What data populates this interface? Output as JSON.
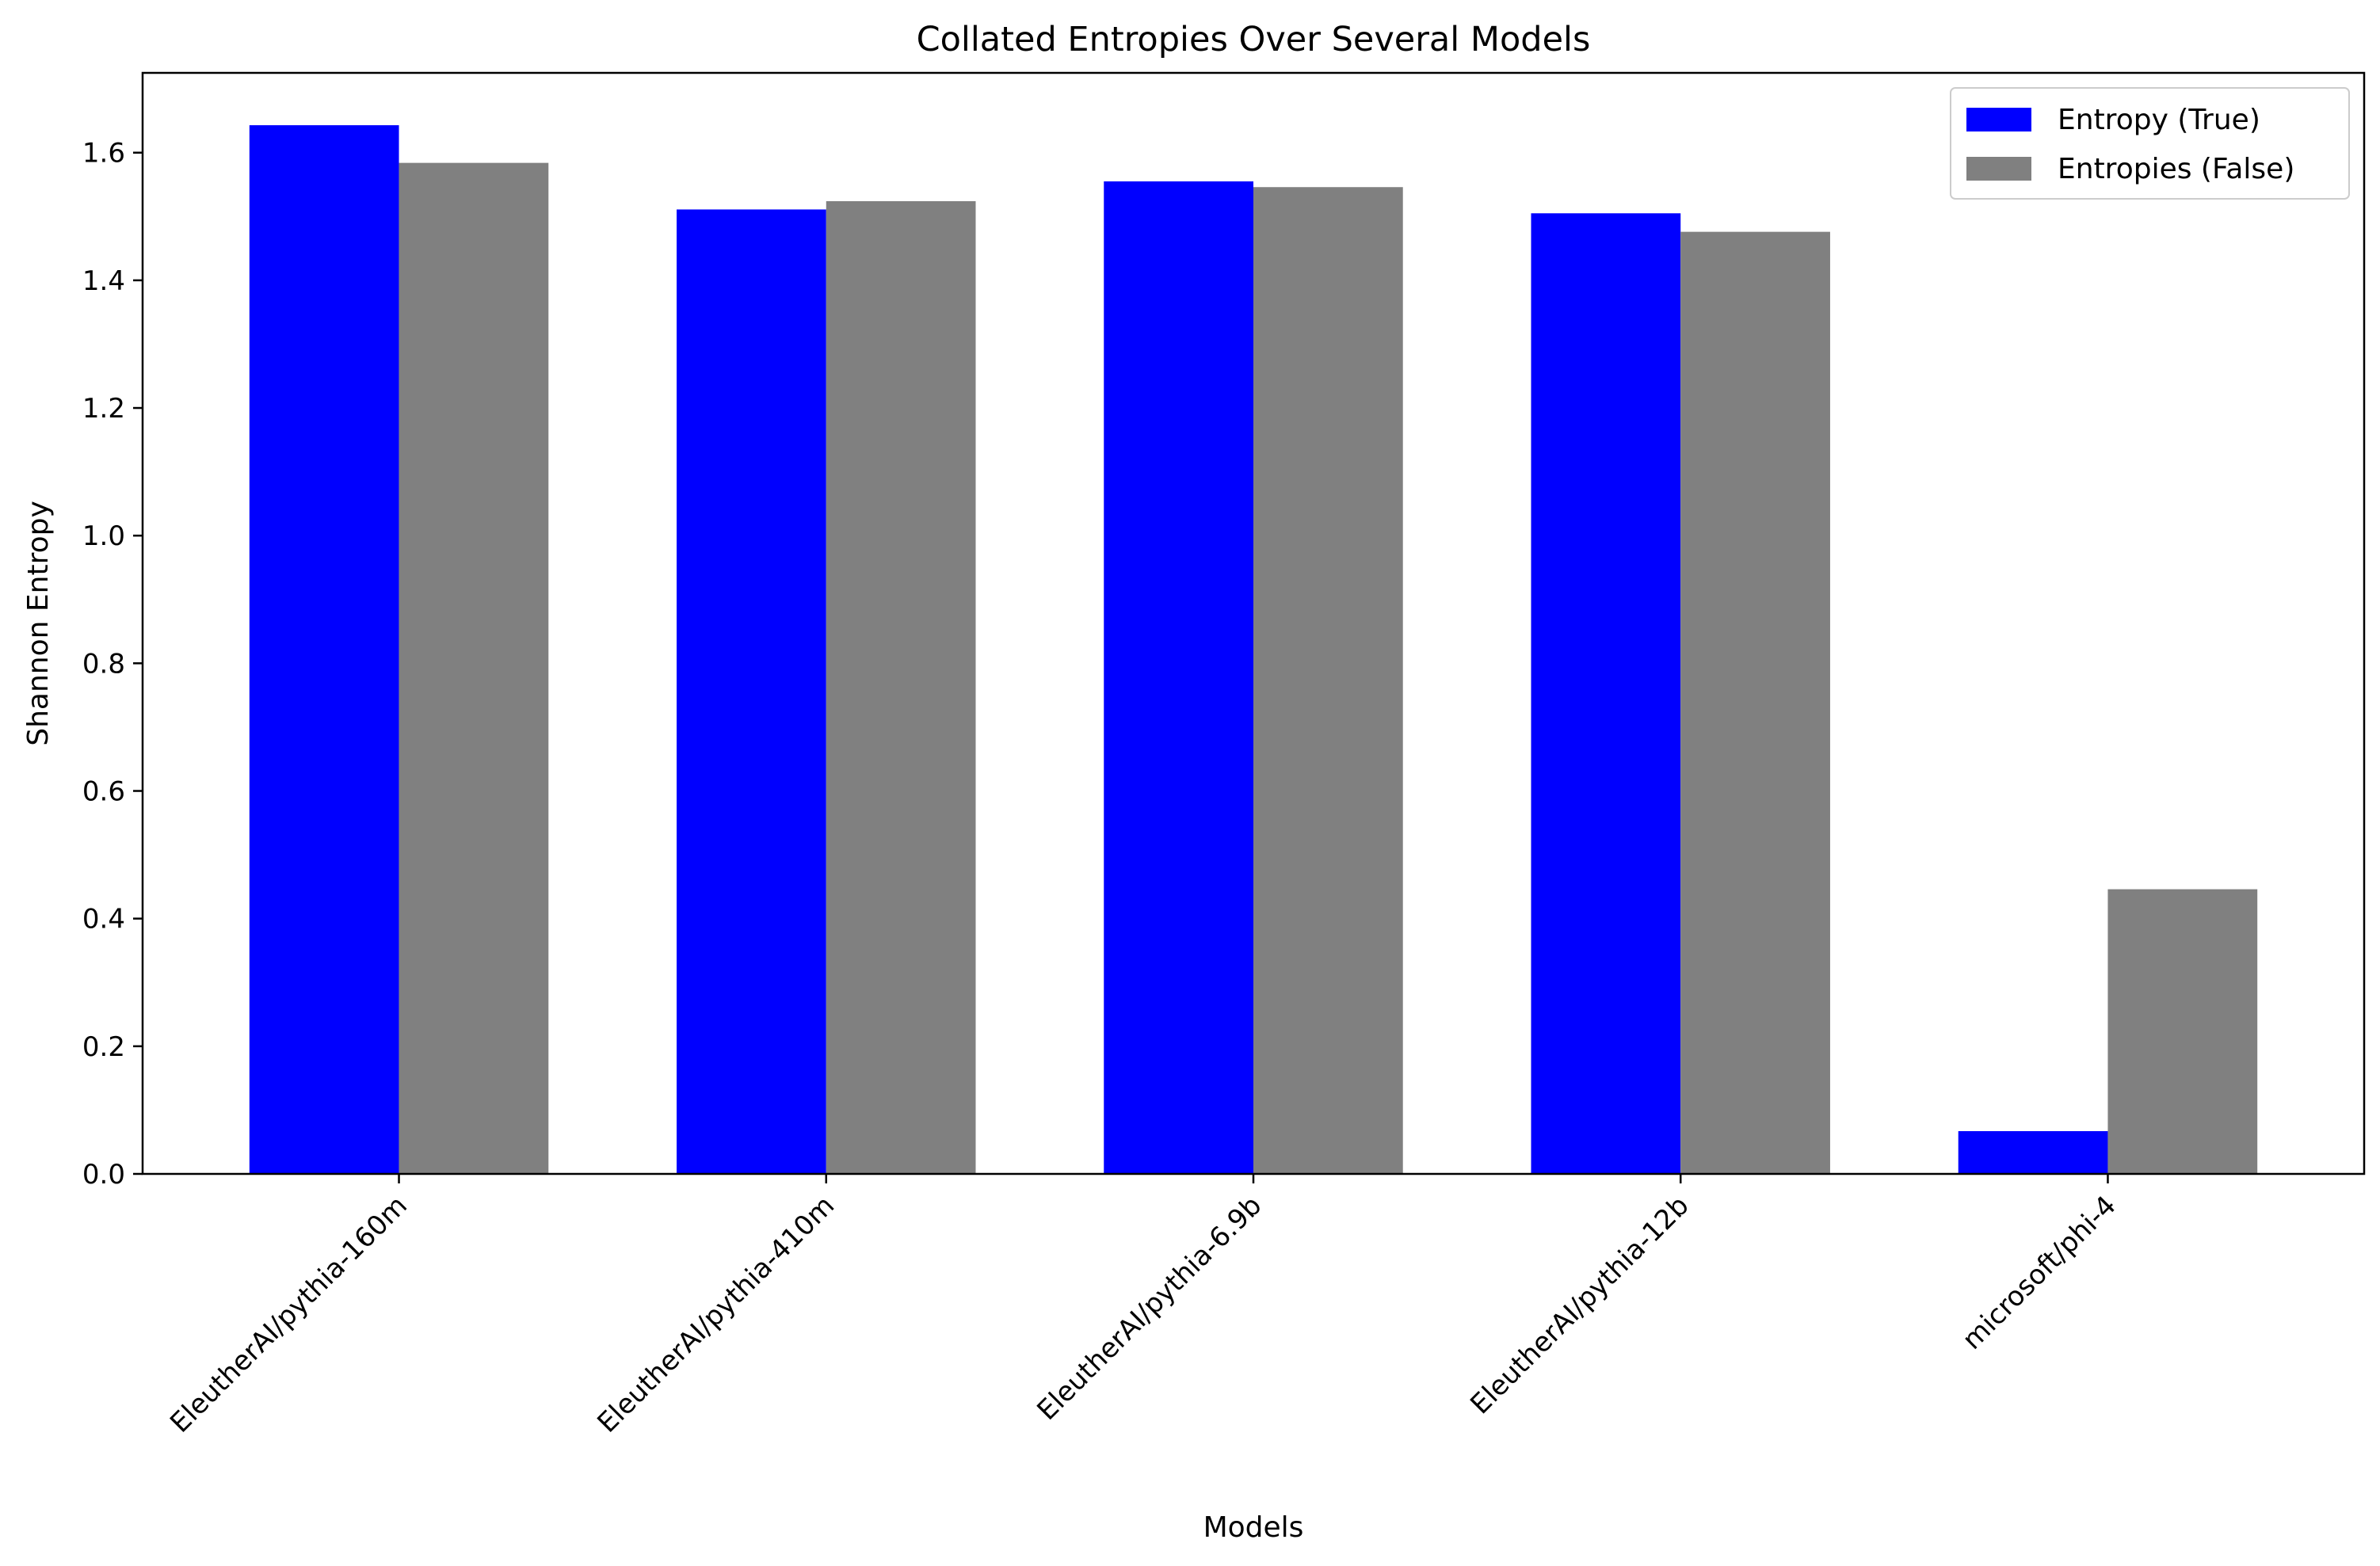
{
  "chart_data": {
    "type": "bar",
    "title": "Collated Entropies Over Several Models",
    "xlabel": "Models",
    "ylabel": "Shannon Entropy",
    "categories": [
      "EleutherAI/pythia-160m",
      "EleutherAI/pythia-410m",
      "EleutherAI/pythia-6.9b",
      "EleutherAI/pythia-12b",
      "microsoft/phi-4"
    ],
    "series": [
      {
        "name": "Entropy (True)",
        "color": "#0000ff",
        "values": [
          1.643,
          1.511,
          1.555,
          1.505,
          0.067
        ]
      },
      {
        "name": "Entropies (False)",
        "color": "#808080",
        "values": [
          1.584,
          1.524,
          1.546,
          1.476,
          0.446
        ]
      }
    ],
    "ylim": [
      0,
      1.725
    ],
    "yticks": [
      0.0,
      0.2,
      0.4,
      0.6,
      0.8,
      1.0,
      1.2,
      1.4,
      1.6
    ],
    "grid": false,
    "legend_position": "top-right"
  }
}
